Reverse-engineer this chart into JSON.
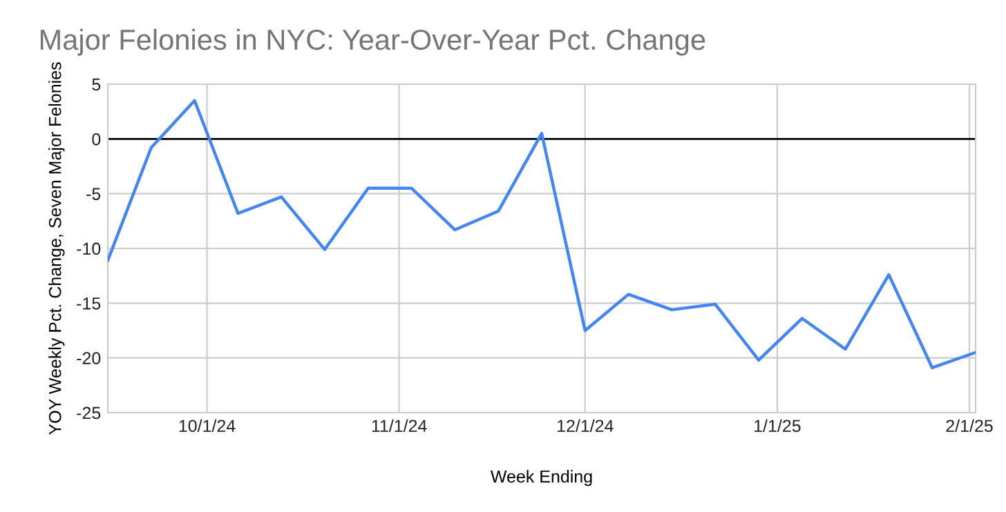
{
  "chart_data": {
    "type": "line",
    "title": "Major Felonies in NYC: Year-Over-Year Pct. Change",
    "xlabel": "Week Ending",
    "ylabel": "YOY Weekly Pct. Change, Seven Major Felonies",
    "x": [
      "2024-09-15",
      "2024-09-22",
      "2024-09-29",
      "2024-10-06",
      "2024-10-13",
      "2024-10-20",
      "2024-10-27",
      "2024-11-03",
      "2024-11-10",
      "2024-11-17",
      "2024-11-24",
      "2024-12-01",
      "2024-12-08",
      "2024-12-15",
      "2024-12-22",
      "2024-12-29",
      "2025-01-05",
      "2025-01-12",
      "2025-01-19",
      "2025-01-26",
      "2025-02-02"
    ],
    "series": [
      {
        "color": "#4285f4",
        "values": [
          -11.1,
          -0.8,
          3.5,
          -6.8,
          -5.3,
          -10.1,
          -4.5,
          -4.5,
          -8.3,
          -6.6,
          0.5,
          -17.5,
          -14.2,
          -15.6,
          -15.1,
          -20.2,
          -16.4,
          -19.2,
          -12.4,
          -20.9,
          -19.5
        ]
      }
    ],
    "xlim": [
      "2024-09-15",
      "2025-02-02"
    ],
    "xticks": [
      {
        "value": "2024-10-01",
        "label": "10/1/24"
      },
      {
        "value": "2024-11-01",
        "label": "11/1/24"
      },
      {
        "value": "2024-12-01",
        "label": "12/1/24"
      },
      {
        "value": "2025-01-01",
        "label": "1/1/25"
      },
      {
        "value": "2025-02-01",
        "label": "2/1/25"
      }
    ],
    "ylim": [
      -25,
      5
    ],
    "yticks": [
      -25,
      -20,
      -15,
      -10,
      -5,
      0,
      5
    ],
    "ref_lines": [
      {
        "axis": "y",
        "value": 0,
        "color": "#000000"
      }
    ],
    "grid": true
  }
}
